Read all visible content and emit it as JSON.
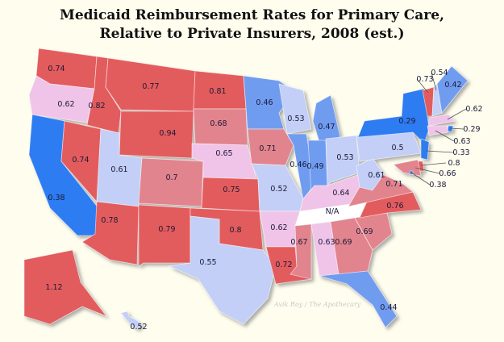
{
  "title_line1": "Medicaid Reimbursement Rates for Primary Care,",
  "title_line2": "Relative to Private Insurers, 2008 (est.)",
  "credit": "Avik Roy / The Apothecary",
  "colors": {
    "red": "#e35b5d",
    "rose": "#e2848d",
    "pink": "#f0c4e8",
    "light_blue": "#c3cff6",
    "blue": "#6f9cf0",
    "bright_blue": "#2f7bf2",
    "na": "#ffffff",
    "shadow": "#9a9a9a"
  },
  "states": [
    {
      "id": "WA",
      "value": "0.74"
    },
    {
      "id": "OR",
      "value": "0.62"
    },
    {
      "id": "CA",
      "value": "0.38"
    },
    {
      "id": "NV",
      "value": "0.74"
    },
    {
      "id": "ID",
      "value": "0.82"
    },
    {
      "id": "MT",
      "value": "0.77"
    },
    {
      "id": "WY",
      "value": "0.94"
    },
    {
      "id": "UT",
      "value": "0.61"
    },
    {
      "id": "AZ",
      "value": "0.78"
    },
    {
      "id": "CO",
      "value": "0.7"
    },
    {
      "id": "NM",
      "value": "0.79"
    },
    {
      "id": "ND",
      "value": "0.81"
    },
    {
      "id": "SD",
      "value": "0.68"
    },
    {
      "id": "NE",
      "value": "0.65"
    },
    {
      "id": "KS",
      "value": "0.75"
    },
    {
      "id": "OK",
      "value": "0.8"
    },
    {
      "id": "TX",
      "value": "0.55"
    },
    {
      "id": "MN",
      "value": "0.46"
    },
    {
      "id": "IA",
      "value": "0.71"
    },
    {
      "id": "MO",
      "value": "0.52"
    },
    {
      "id": "AR",
      "value": "0.62"
    },
    {
      "id": "LA",
      "value": "0.72"
    },
    {
      "id": "WI",
      "value": "0.53"
    },
    {
      "id": "IL",
      "value": "0.46"
    },
    {
      "id": "MI",
      "value": "0.47"
    },
    {
      "id": "IN",
      "value": "0.49"
    },
    {
      "id": "OH",
      "value": "0.53"
    },
    {
      "id": "KY",
      "value": "0.64"
    },
    {
      "id": "TN",
      "value": "N/A"
    },
    {
      "id": "MS",
      "value": "0.67"
    },
    {
      "id": "AL",
      "value": "0.63"
    },
    {
      "id": "GA",
      "value": "0.69"
    },
    {
      "id": "FL",
      "value": "0.44"
    },
    {
      "id": "SC",
      "value": "0.69"
    },
    {
      "id": "NC",
      "value": "0.76"
    },
    {
      "id": "VA",
      "value": "0.71"
    },
    {
      "id": "WV",
      "value": "0.61"
    },
    {
      "id": "PA",
      "value": "0.5"
    },
    {
      "id": "NY",
      "value": "0.29"
    },
    {
      "id": "VT",
      "value": "0.73"
    },
    {
      "id": "NH",
      "value": "0.54"
    },
    {
      "id": "ME",
      "value": "0.42"
    },
    {
      "id": "MA",
      "value": "0.62"
    },
    {
      "id": "RI",
      "value": "0.29"
    },
    {
      "id": "CT",
      "value": "0.63"
    },
    {
      "id": "NJ",
      "value": "0.33"
    },
    {
      "id": "DE",
      "value": "0.8"
    },
    {
      "id": "MD",
      "value": "0.66"
    },
    {
      "id": "DC",
      "value": "0.38"
    },
    {
      "id": "AK",
      "value": "1.12"
    },
    {
      "id": "HI",
      "value": "0.52"
    }
  ]
}
